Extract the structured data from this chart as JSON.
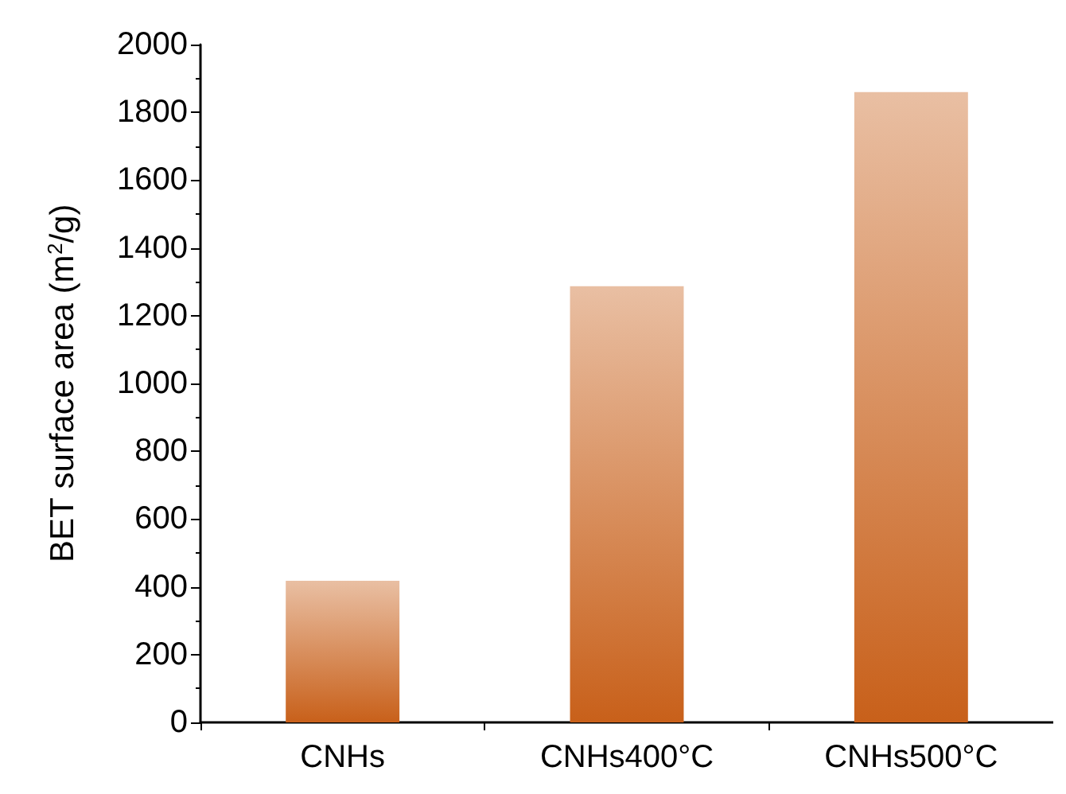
{
  "chart_data": {
    "type": "bar",
    "categories": [
      "CNHs",
      "CNHs400°C",
      "CNHs500°C"
    ],
    "values": [
      418,
      1287,
      1860
    ],
    "color": "#c8601a",
    "ylabel": "BET surface area (m$^{2}$/g)",
    "ylim": [
      0,
      2000
    ],
    "yticks": [
      0,
      200,
      400,
      600,
      800,
      1000,
      1200,
      1400,
      1600,
      1800,
      2000
    ],
    "grid": false
  }
}
